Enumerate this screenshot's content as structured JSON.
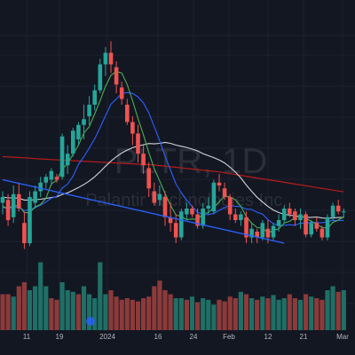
{
  "chart_data": {
    "type": "candlestick",
    "ticker_watermark": "PLTR, 1D",
    "name_watermark": "Palantir Technologies Inc.",
    "x_tick_labels": [
      "11",
      "19",
      "2024",
      "16",
      "24",
      "Feb",
      "12",
      "21",
      "Mar"
    ],
    "grid": true,
    "colors": {
      "background": "#131722",
      "grid": "#1e2230",
      "up": "#26a69a",
      "down": "#ef5350",
      "volume_up": "#1f6f66",
      "volume_down": "#8c3a3a",
      "ma_fast": "#4caf50",
      "ma_mid": "#2962ff",
      "ma_slow": "#d1d4dc",
      "ma_long": "#b71c1c",
      "trendline": "#2962ff",
      "tick_text": "#b2b5be",
      "watermark": "#2a2e39"
    },
    "price_range": [
      14.0,
      22.0
    ],
    "candles": [
      [
        16.2,
        16.6,
        15.8,
        16.4
      ],
      [
        16.3,
        16.5,
        15.4,
        15.6
      ],
      [
        15.7,
        16.8,
        15.5,
        16.5
      ],
      [
        16.5,
        16.9,
        15.9,
        16.0
      ],
      [
        15.5,
        15.9,
        14.6,
        14.8
      ],
      [
        14.8,
        16.6,
        14.7,
        16.4
      ],
      [
        16.2,
        16.8,
        16.0,
        16.6
      ],
      [
        16.6,
        17.1,
        16.4,
        16.9
      ],
      [
        16.9,
        17.2,
        16.7,
        17.1
      ],
      [
        17.0,
        17.4,
        16.8,
        17.3
      ],
      [
        17.1,
        17.2,
        16.9,
        17.0
      ],
      [
        17.1,
        18.6,
        17.0,
        18.5
      ],
      [
        17.5,
        18.2,
        17.2,
        17.9
      ],
      [
        17.9,
        18.8,
        17.8,
        18.7
      ],
      [
        18.4,
        19.0,
        18.2,
        18.9
      ],
      [
        18.9,
        19.6,
        18.4,
        19.1
      ],
      [
        19.2,
        19.9,
        18.9,
        19.6
      ],
      [
        19.6,
        20.3,
        19.4,
        20.1
      ],
      [
        20.1,
        21.2,
        20.0,
        21.0
      ],
      [
        21.0,
        21.6,
        20.6,
        21.4
      ],
      [
        21.4,
        21.8,
        20.7,
        21.0
      ],
      [
        20.9,
        21.1,
        20.0,
        20.3
      ],
      [
        20.2,
        20.4,
        19.6,
        19.8
      ],
      [
        19.6,
        19.8,
        18.9,
        19.0
      ],
      [
        19.0,
        19.2,
        18.2,
        18.6
      ],
      [
        18.6,
        18.9,
        17.6,
        17.9
      ],
      [
        17.9,
        18.2,
        17.2,
        17.5
      ],
      [
        17.4,
        17.6,
        16.4,
        16.7
      ],
      [
        16.6,
        16.9,
        16.1,
        16.2
      ],
      [
        16.3,
        16.8,
        16.1,
        16.5
      ],
      [
        16.4,
        16.6,
        15.4,
        15.7
      ],
      [
        15.7,
        16.2,
        15.2,
        15.5
      ],
      [
        15.5,
        15.8,
        14.8,
        15.0
      ],
      [
        15.0,
        16.0,
        14.9,
        15.9
      ],
      [
        15.8,
        16.2,
        15.6,
        16.0
      ],
      [
        16.0,
        16.1,
        15.7,
        15.8
      ],
      [
        15.8,
        16.0,
        15.3,
        15.4
      ],
      [
        15.4,
        16.2,
        15.3,
        16.0
      ],
      [
        16.0,
        16.4,
        15.8,
        16.1
      ],
      [
        15.9,
        17.0,
        15.8,
        16.9
      ],
      [
        16.9,
        17.2,
        16.6,
        16.8
      ],
      [
        16.7,
        16.9,
        16.3,
        16.4
      ],
      [
        16.4,
        16.5,
        15.6,
        15.8
      ],
      [
        15.8,
        16.0,
        15.5,
        15.6
      ],
      [
        15.6,
        15.9,
        15.4,
        15.8
      ],
      [
        15.7,
        15.9,
        14.8,
        15.0
      ],
      [
        15.0,
        15.5,
        14.8,
        15.3
      ],
      [
        15.2,
        15.3,
        14.8,
        15.0
      ],
      [
        15.0,
        15.6,
        14.9,
        15.5
      ],
      [
        15.3,
        15.6,
        14.8,
        15.0
      ],
      [
        15.0,
        15.5,
        14.9,
        15.4
      ],
      [
        15.4,
        15.8,
        15.2,
        15.6
      ],
      [
        15.6,
        16.1,
        15.5,
        16.0
      ],
      [
        16.0,
        16.2,
        15.7,
        15.8
      ],
      [
        15.9,
        16.0,
        15.4,
        15.6
      ],
      [
        15.6,
        16.0,
        15.3,
        15.8
      ],
      [
        15.8,
        15.9,
        15.0,
        15.1
      ],
      [
        15.1,
        15.6,
        15.0,
        15.5
      ],
      [
        15.5,
        15.7,
        15.2,
        15.3
      ],
      [
        15.3,
        15.4,
        14.9,
        15.0
      ],
      [
        15.0,
        15.8,
        14.9,
        15.7
      ],
      [
        15.7,
        16.2,
        15.6,
        16.1
      ],
      [
        16.1,
        16.3,
        15.8,
        15.9
      ],
      [
        15.9,
        16.0,
        15.7,
        15.9
      ]
    ],
    "volume": [
      {
        "v": 0.45,
        "up": false
      },
      {
        "v": 0.45,
        "up": false
      },
      {
        "v": 0.42,
        "up": true
      },
      {
        "v": 0.55,
        "up": false
      },
      {
        "v": 0.6,
        "up": false
      },
      {
        "v": 0.5,
        "up": true
      },
      {
        "v": 0.55,
        "up": true
      },
      {
        "v": 0.85,
        "up": true
      },
      {
        "v": 0.55,
        "up": true
      },
      {
        "v": 0.4,
        "up": false
      },
      {
        "v": 0.38,
        "up": false
      },
      {
        "v": 0.6,
        "up": true
      },
      {
        "v": 0.5,
        "up": true
      },
      {
        "v": 0.48,
        "up": true
      },
      {
        "v": 0.45,
        "up": false
      },
      {
        "v": 0.55,
        "up": true
      },
      {
        "v": 0.45,
        "up": true
      },
      {
        "v": 0.4,
        "up": true
      },
      {
        "v": 0.85,
        "up": true
      },
      {
        "v": 0.45,
        "up": true
      },
      {
        "v": 0.5,
        "up": false
      },
      {
        "v": 0.42,
        "up": false
      },
      {
        "v": 0.38,
        "up": false
      },
      {
        "v": 0.4,
        "up": false
      },
      {
        "v": 0.38,
        "up": false
      },
      {
        "v": 0.36,
        "up": false
      },
      {
        "v": 0.4,
        "up": false
      },
      {
        "v": 0.42,
        "up": false
      },
      {
        "v": 0.55,
        "up": false
      },
      {
        "v": 0.62,
        "up": false
      },
      {
        "v": 0.5,
        "up": false
      },
      {
        "v": 0.45,
        "up": false
      },
      {
        "v": 0.4,
        "up": true
      },
      {
        "v": 0.4,
        "up": true
      },
      {
        "v": 0.38,
        "up": false
      },
      {
        "v": 0.42,
        "up": true
      },
      {
        "v": 0.35,
        "up": false
      },
      {
        "v": 0.4,
        "up": true
      },
      {
        "v": 0.38,
        "up": true
      },
      {
        "v": 0.32,
        "up": true
      },
      {
        "v": 0.38,
        "up": false
      },
      {
        "v": 0.36,
        "up": false
      },
      {
        "v": 0.42,
        "up": false
      },
      {
        "v": 0.4,
        "up": false
      },
      {
        "v": 0.48,
        "up": true
      },
      {
        "v": 0.45,
        "up": false
      },
      {
        "v": 0.4,
        "up": true
      },
      {
        "v": 0.38,
        "up": false
      },
      {
        "v": 0.42,
        "up": true
      },
      {
        "v": 0.4,
        "up": false
      },
      {
        "v": 0.44,
        "up": true
      },
      {
        "v": 0.38,
        "up": true
      },
      {
        "v": 0.4,
        "up": true
      },
      {
        "v": 0.45,
        "up": false
      },
      {
        "v": 0.4,
        "up": false
      },
      {
        "v": 0.38,
        "up": true
      },
      {
        "v": 0.45,
        "up": false
      },
      {
        "v": 0.42,
        "up": true
      },
      {
        "v": 0.4,
        "up": false
      },
      {
        "v": 0.38,
        "up": false
      },
      {
        "v": 0.5,
        "up": true
      },
      {
        "v": 0.55,
        "up": true
      },
      {
        "v": 0.48,
        "up": false
      },
      {
        "v": 0.5,
        "up": true
      }
    ],
    "ma_long": [
      17.8,
      17.79,
      17.78,
      17.77,
      17.76,
      17.75,
      17.73,
      17.72,
      17.71,
      17.7,
      17.69,
      17.68,
      17.67,
      17.66,
      17.65,
      17.64,
      17.63,
      17.62,
      17.61,
      17.6,
      17.59,
      17.58,
      17.57,
      17.56,
      17.55,
      17.54,
      17.53,
      17.52,
      17.51,
      17.49,
      17.47,
      17.45,
      17.43,
      17.41,
      17.39,
      17.37,
      17.35,
      17.33,
      17.31,
      17.29,
      17.27,
      17.24,
      17.21,
      17.18,
      17.15,
      17.12,
      17.09,
      17.06,
      17.03,
      17.0,
      16.97,
      16.94,
      16.91,
      16.88,
      16.85,
      16.82,
      16.79,
      16.76,
      16.73,
      16.7,
      16.67,
      16.64,
      16.61,
      16.58
    ]
  }
}
